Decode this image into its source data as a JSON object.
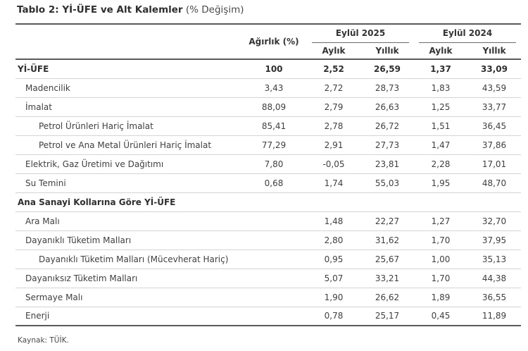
{
  "title": {
    "main": "Tablo 2: Yİ-ÜFE ve Alt Kalemler",
    "suffix": " (% Değişim)"
  },
  "table": {
    "col_headers": {
      "weight": "Ağırlık (%)",
      "groups": [
        {
          "label": "Eylül 2025",
          "subs": [
            "Aylık",
            "Yıllık"
          ]
        },
        {
          "label": "Eylül 2024",
          "subs": [
            "Aylık",
            "Yıllık"
          ]
        }
      ]
    },
    "rows": [
      {
        "label": "Yİ-ÜFE",
        "indent": 0,
        "bold": true,
        "values": [
          "100",
          "2,52",
          "26,59",
          "1,37",
          "33,09"
        ]
      },
      {
        "label": "Madencilik",
        "indent": 1,
        "bold": false,
        "values": [
          "3,43",
          "2,72",
          "28,73",
          "1,83",
          "43,59"
        ]
      },
      {
        "label": "İmalat",
        "indent": 1,
        "bold": false,
        "values": [
          "88,09",
          "2,79",
          "26,63",
          "1,25",
          "33,77"
        ]
      },
      {
        "label": "Petrol Ürünleri Hariç İmalat",
        "indent": 2,
        "bold": false,
        "values": [
          "85,41",
          "2,78",
          "26,72",
          "1,51",
          "36,45"
        ]
      },
      {
        "label": "Petrol ve Ana Metal Ürünleri Hariç İmalat",
        "indent": 2,
        "bold": false,
        "values": [
          "77,29",
          "2,91",
          "27,73",
          "1,47",
          "37,86"
        ]
      },
      {
        "label": "Elektrik, Gaz Üretimi ve Dağıtımı",
        "indent": 1,
        "bold": false,
        "values": [
          "7,80",
          "-0,05",
          "23,81",
          "2,28",
          "17,01"
        ]
      },
      {
        "label": "Su Temini",
        "indent": 1,
        "bold": false,
        "values": [
          "0,68",
          "1,74",
          "55,03",
          "1,95",
          "48,70"
        ]
      },
      {
        "label": "Ana Sanayi Kollarına Göre Yİ-ÜFE",
        "indent": 0,
        "bold": true,
        "values": [
          "",
          "",
          "",
          "",
          ""
        ]
      },
      {
        "label": "Ara Malı",
        "indent": 1,
        "bold": false,
        "values": [
          "",
          "1,48",
          "22,27",
          "1,27",
          "32,70"
        ]
      },
      {
        "label": "Dayanıklı Tüketim Malları",
        "indent": 1,
        "bold": false,
        "values": [
          "",
          "2,80",
          "31,62",
          "1,70",
          "37,95"
        ]
      },
      {
        "label": "Dayanıklı Tüketim Malları (Mücevherat Hariç)",
        "indent": 2,
        "bold": false,
        "values": [
          "",
          "0,95",
          "25,67",
          "1,00",
          "35,13"
        ]
      },
      {
        "label": "Dayanıksız Tüketim Malları",
        "indent": 1,
        "bold": false,
        "values": [
          "",
          "5,07",
          "33,21",
          "1,70",
          "44,38"
        ]
      },
      {
        "label": "Sermaye Malı",
        "indent": 1,
        "bold": false,
        "values": [
          "",
          "1,90",
          "26,62",
          "1,89",
          "36,55"
        ]
      },
      {
        "label": "Enerji",
        "indent": 1,
        "bold": false,
        "values": [
          "",
          "0,78",
          "25,17",
          "0,45",
          "11,89"
        ]
      }
    ]
  },
  "footer": {
    "source": "Kaynak: TÜİK."
  },
  "colors": {
    "text": "#3f3f3f",
    "border_dark": "#5a5a5a",
    "separator": "#d4d4d4"
  }
}
